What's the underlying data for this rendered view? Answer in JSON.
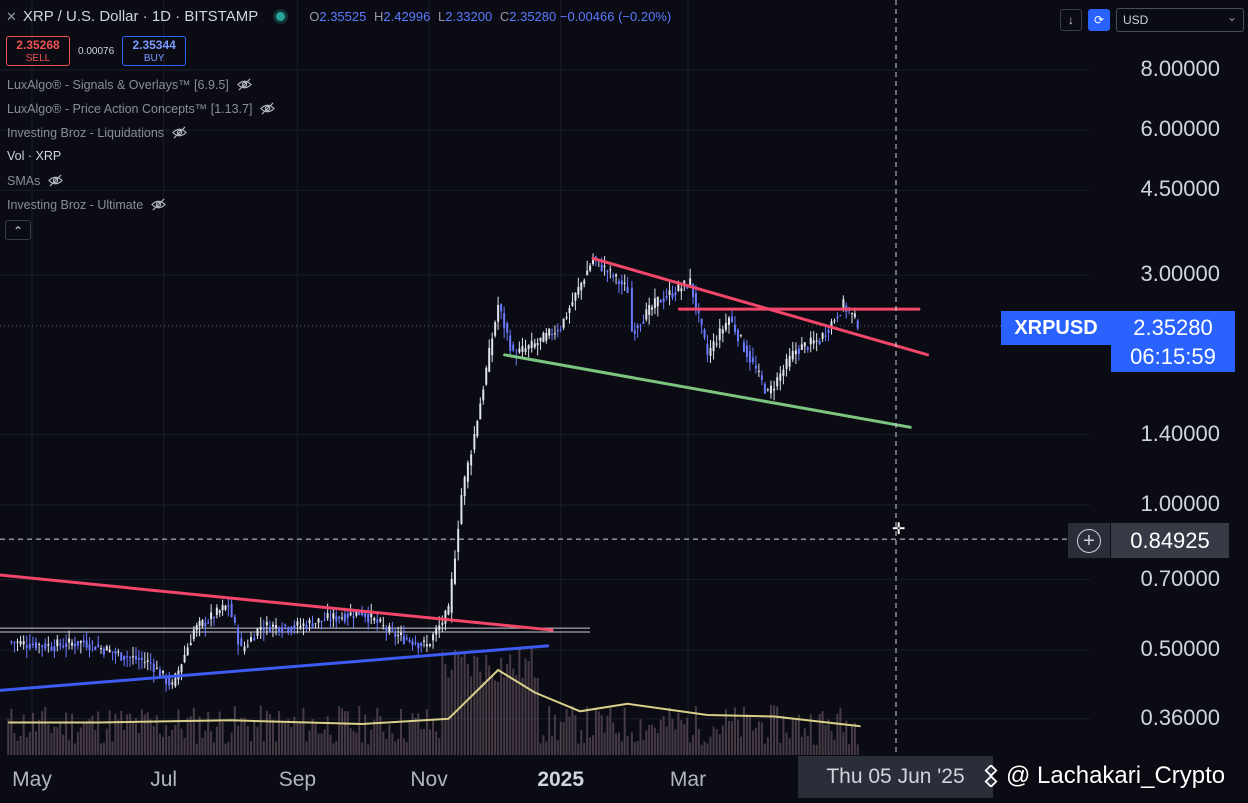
{
  "header": {
    "close_symbol": "✕",
    "title": "XRP / U.S. Dollar · 1D · BITSTAMP",
    "ohlc": {
      "o_label": "O",
      "o": "2.35525",
      "h_label": "H",
      "h": "2.42996",
      "l_label": "L",
      "l": "2.33200",
      "c_label": "C",
      "c": "2.35280",
      "change": "−0.00466 (−0.20%)"
    }
  },
  "trade": {
    "sell_price": "2.35268",
    "sell_label": "SELL",
    "spread": "0.00076",
    "buy_price": "2.35344",
    "buy_label": "BUY"
  },
  "indicators": [
    {
      "name": "LuxAlgo® - Signals & Overlays™ [6.9.5]",
      "hidden": true
    },
    {
      "name": "LuxAlgo® - Price Action Concepts™ [1.13.7]",
      "hidden": true
    },
    {
      "name": "Investing Broz - Liquidations",
      "hidden": true
    },
    {
      "name": "Vol · XRP",
      "hidden": false
    },
    {
      "name": "SMAs",
      "hidden": true
    },
    {
      "name": "Investing Broz - Ultimate",
      "hidden": true
    }
  ],
  "collapse_icon": "⌃",
  "toolbar": {
    "down_arrow": "↓",
    "currency": "USD"
  },
  "price_label": {
    "symbol": "XRPUSD",
    "price": "2.35280",
    "countdown": "06:15:59"
  },
  "crosshair": {
    "price": "0.84925",
    "date": "Thu 05 Jun '25",
    "add_icon": "+"
  },
  "watermark": "@ Lachakari_Crypto",
  "colors": {
    "background": "#0b0b14",
    "accent": "#2962ff",
    "resistance": "#f2466a",
    "support_green": "#7cc47f",
    "support_blue": "#3d5af1",
    "volume_ma": "#d8d08a",
    "up": "#dfe3ec",
    "down": "#6a7bff"
  },
  "chart_data": {
    "type": "candlestick",
    "scale": "log",
    "yticks": [
      0.36,
      0.5,
      0.7,
      1.0,
      1.4,
      3.0,
      4.5,
      6.0,
      8.0
    ],
    "ytick_labels": [
      "0.36000",
      "0.50000",
      "0.70000",
      "1.00000",
      "1.40000",
      "3.00000",
      "4.50000",
      "6.00000",
      "8.00000"
    ],
    "xtick_labels": [
      "May",
      "Jul",
      "Sep",
      "Nov",
      "2025",
      "Mar"
    ],
    "xtick_dates": [
      "2024-05-01",
      "2024-07-01",
      "2024-09-01",
      "2024-11-01",
      "2025-01-01",
      "2025-03-01"
    ],
    "last_price": 2.3528,
    "close_path": [
      [
        "2024-04-20",
        0.52
      ],
      [
        "2024-05-10",
        0.51
      ],
      [
        "2024-05-25",
        0.52
      ],
      [
        "2024-06-10",
        0.49
      ],
      [
        "2024-06-25",
        0.47
      ],
      [
        "2024-07-05",
        0.42
      ],
      [
        "2024-07-15",
        0.55
      ],
      [
        "2024-07-31",
        0.62
      ],
      [
        "2024-08-06",
        0.5
      ],
      [
        "2024-08-15",
        0.56
      ],
      [
        "2024-09-01",
        0.56
      ],
      [
        "2024-09-15",
        0.58
      ],
      [
        "2024-10-01",
        0.6
      ],
      [
        "2024-10-15",
        0.54
      ],
      [
        "2024-10-31",
        0.51
      ],
      [
        "2024-11-10",
        0.6
      ],
      [
        "2024-11-16",
        1.05
      ],
      [
        "2024-11-22",
        1.4
      ],
      [
        "2024-12-03",
        2.6
      ],
      [
        "2024-12-10",
        2.05
      ],
      [
        "2024-12-20",
        2.15
      ],
      [
        "2025-01-01",
        2.35
      ],
      [
        "2025-01-16",
        3.25
      ],
      [
        "2025-02-01",
        2.8
      ],
      [
        "2025-02-03",
        2.3
      ],
      [
        "2025-02-15",
        2.65
      ],
      [
        "2025-03-02",
        2.9
      ],
      [
        "2025-03-10",
        2.05
      ],
      [
        "2025-03-20",
        2.45
      ],
      [
        "2025-04-07",
        1.7
      ],
      [
        "2025-04-20",
        2.1
      ],
      [
        "2025-05-01",
        2.2
      ],
      [
        "2025-05-12",
        2.6
      ],
      [
        "2025-05-20",
        2.35
      ]
    ],
    "volume_ma_path": [
      [
        "2024-04-20",
        0.3
      ],
      [
        "2024-06-01",
        0.3
      ],
      [
        "2024-08-01",
        0.33
      ],
      [
        "2024-10-01",
        0.28
      ],
      [
        "2024-11-10",
        0.35
      ],
      [
        "2024-12-03",
        1.0
      ],
      [
        "2024-12-20",
        0.7
      ],
      [
        "2025-01-10",
        0.45
      ],
      [
        "2025-02-01",
        0.55
      ],
      [
        "2025-03-10",
        0.4
      ],
      [
        "2025-04-10",
        0.38
      ],
      [
        "2025-05-20",
        0.25
      ]
    ],
    "trendlines": [
      {
        "kind": "resistance",
        "color": "#f2466a",
        "from": [
          "2025-01-16",
          3.25
        ],
        "to": [
          "2025-06-20",
          2.05
        ]
      },
      {
        "kind": "resistance",
        "color": "#f2466a",
        "from": [
          "2025-02-25",
          2.55
        ],
        "to": [
          "2025-06-16",
          2.55
        ]
      },
      {
        "kind": "support",
        "color": "#7cc47f",
        "from": [
          "2024-12-06",
          2.05
        ],
        "to": [
          "2025-06-12",
          1.45
        ]
      },
      {
        "kind": "resistance",
        "color": "#f2466a",
        "from": [
          "2024-04-10",
          0.72
        ],
        "to": [
          "2024-12-28",
          0.55
        ]
      },
      {
        "kind": "support",
        "color": "#3d5af1",
        "from": [
          "2024-04-10",
          0.41
        ],
        "to": [
          "2024-12-26",
          0.51
        ]
      }
    ]
  }
}
